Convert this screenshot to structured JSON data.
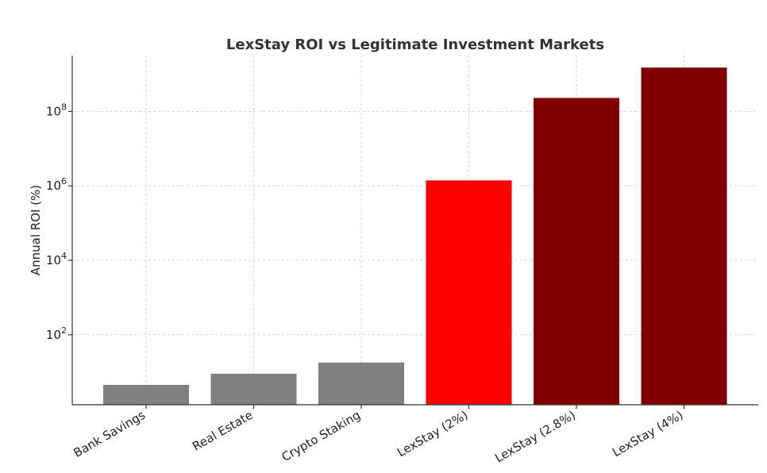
{
  "chart_data": {
    "type": "bar",
    "title": "LexStay ROI vs Legitimate Investment Markets",
    "xlabel": "",
    "ylabel": "Annual ROI (%)",
    "yscale": "log",
    "ylim": [
      1,
      1000000000
    ],
    "ytick_values": [
      100,
      10000,
      1000000,
      100000000
    ],
    "ytick_exponents": [
      "2",
      "4",
      "6",
      "8"
    ],
    "ytick_base": "10",
    "grid": true,
    "categories": [
      "Bank Savings",
      "Real Estate",
      "Crypto Staking",
      "LexStay (2%)",
      "LexStay (2.8%)",
      "LexStay (4%)"
    ],
    "values": [
      4.5,
      9,
      18,
      1400000,
      230000000,
      1500000000
    ],
    "colors": [
      "#808080",
      "#808080",
      "#808080",
      "#ff0000",
      "#800000",
      "#800000"
    ]
  }
}
